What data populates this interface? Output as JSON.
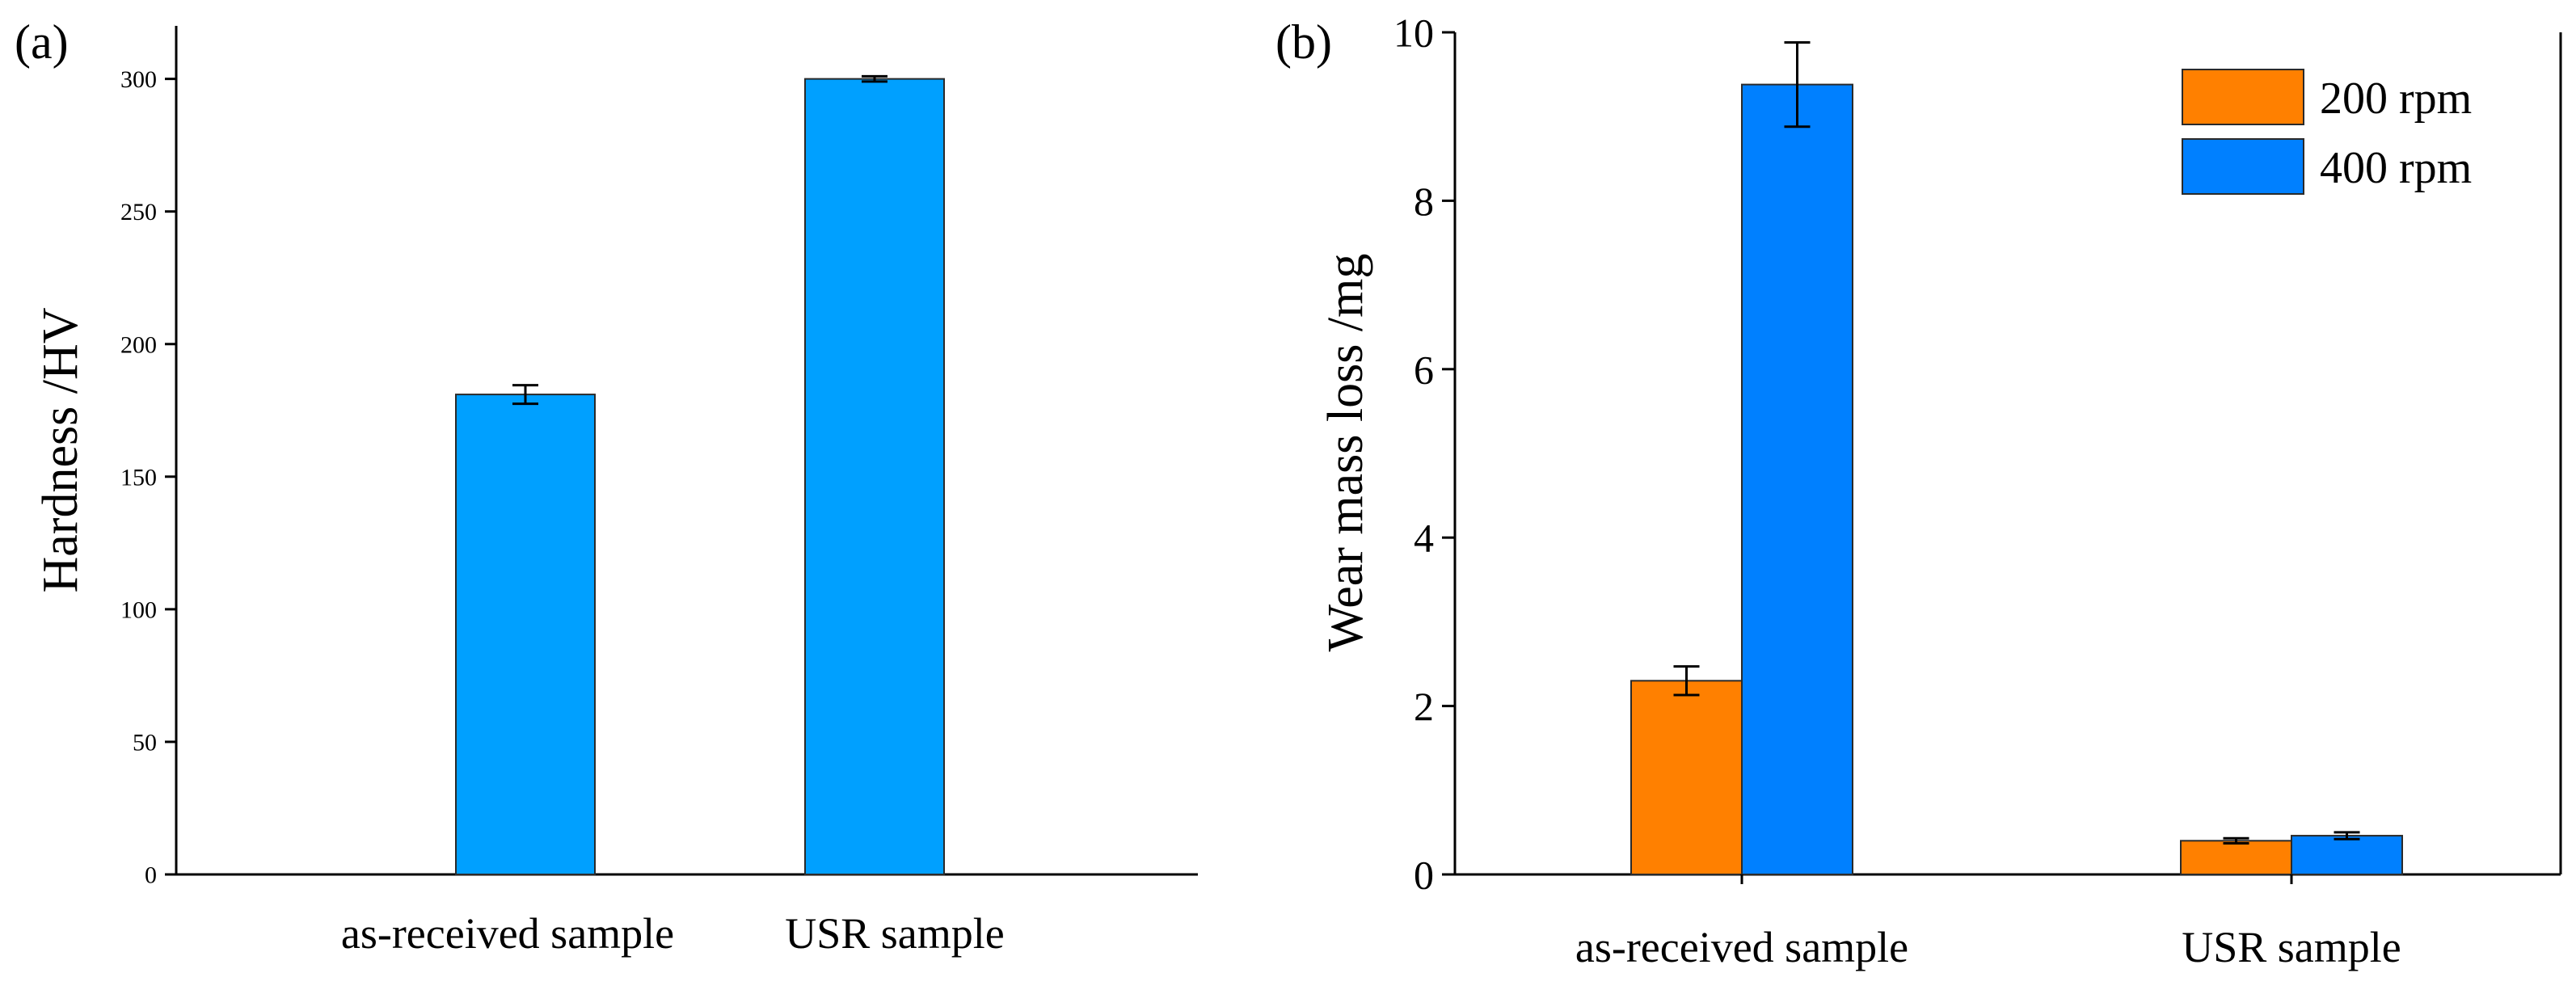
{
  "figure": {
    "bar_stroke": "#2a2a2a",
    "axis_color": "#000000"
  },
  "chart_data": [
    {
      "panel_label": "(a)",
      "type": "bar",
      "title": "",
      "xlabel": "",
      "ylabel": "Hardness  /HV",
      "categories": [
        "as-received sample",
        "USR sample"
      ],
      "series": [
        {
          "name": "Hardness",
          "color": "#00A0FF",
          "values": [
            181,
            300
          ],
          "errors": [
            3.5,
            1
          ]
        }
      ],
      "ylim": [
        0,
        320
      ],
      "yticks": [
        0,
        50,
        100,
        150,
        200,
        250,
        300
      ],
      "ytick_labels": [
        "0",
        "50",
        "100",
        "150",
        "200",
        "250",
        "300"
      ],
      "grid": false,
      "legend": null
    },
    {
      "panel_label": "(b)",
      "type": "bar",
      "title": "",
      "xlabel": "",
      "ylabel": "Wear mass loss  /mg",
      "categories": [
        "as-received sample",
        "USR sample"
      ],
      "series": [
        {
          "name": "200 rpm",
          "color": "#FF8000",
          "values": [
            2.3,
            0.4
          ],
          "errors": [
            0.17,
            0.03
          ]
        },
        {
          "name": "400 rpm",
          "color": "#0080FF",
          "values": [
            9.38,
            0.46
          ],
          "errors": [
            0.5,
            0.04
          ]
        }
      ],
      "ylim": [
        0,
        10
      ],
      "yticks": [
        0,
        2,
        4,
        6,
        8,
        10
      ],
      "ytick_labels": [
        "0",
        "2",
        "4",
        "6",
        "8",
        "10"
      ],
      "grid": false,
      "legend": "top-right"
    }
  ]
}
